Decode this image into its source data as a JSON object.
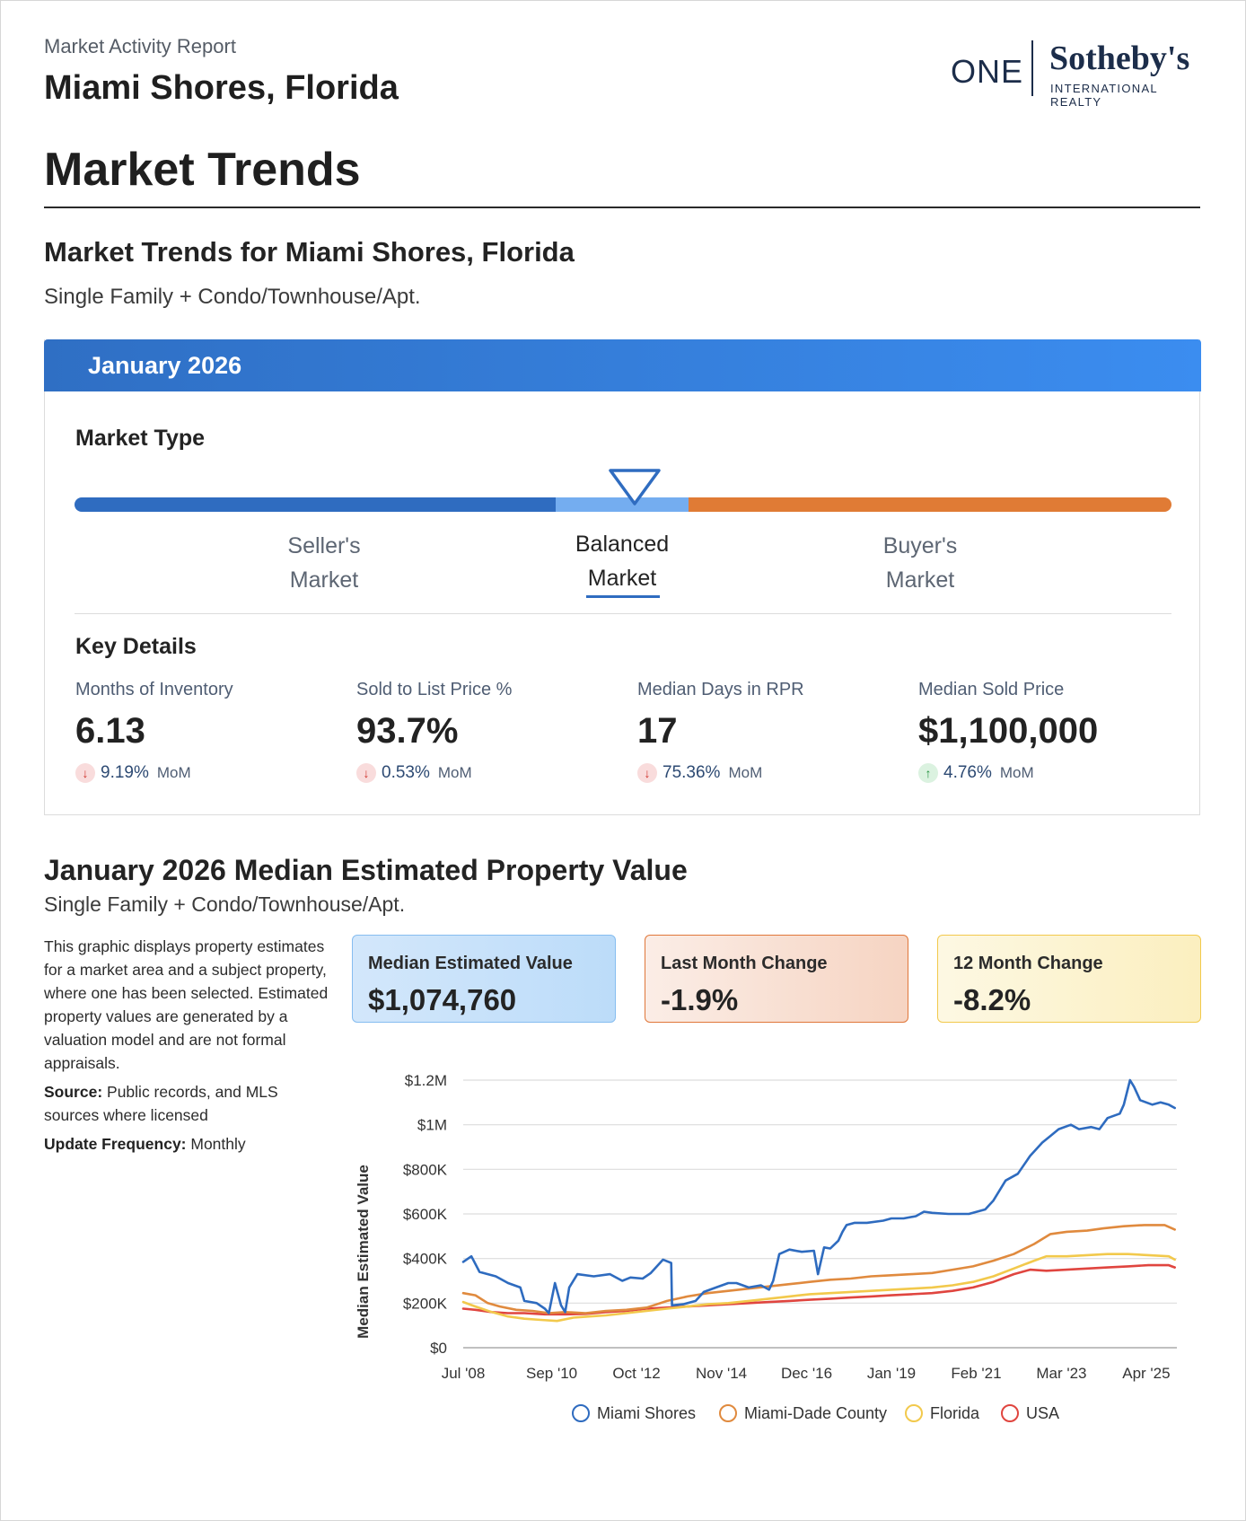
{
  "header": {
    "report_label": "Market Activity Report",
    "location": "Miami Shores, Florida",
    "logo": {
      "one": "ONE",
      "brand": "Sotheby's",
      "tagline": "INTERNATIONAL REALTY"
    }
  },
  "page_title": "Market Trends",
  "section": {
    "title": "Market Trends for Miami Shores, Florida",
    "subtitle": "Single Family + Condo/Townhouse/Apt."
  },
  "month_card": {
    "month_label": "January 2026",
    "market_type": {
      "heading": "Market Type",
      "sellers": [
        "Seller's",
        "Market"
      ],
      "balanced": [
        "Balanced",
        "Market"
      ],
      "buyers": [
        "Buyer's",
        "Market"
      ],
      "active": "balanced",
      "colors": {
        "seller": "#2f6cc0",
        "balanced": "#74adf0",
        "buyer": "#e07b35"
      }
    },
    "key_details": {
      "heading": "Key Details",
      "stats": [
        {
          "label": "Months of Inventory",
          "value": "6.13",
          "direction": "down",
          "icon": "arrow-down-icon",
          "arrow": "↓",
          "change": "9.19%",
          "period": "MoM"
        },
        {
          "label": "Sold to List Price %",
          "value": "93.7%",
          "direction": "down",
          "icon": "arrow-down-icon",
          "arrow": "↓",
          "change": "0.53%",
          "period": "MoM"
        },
        {
          "label": "Median Days in RPR",
          "value": "17",
          "direction": "down",
          "icon": "arrow-down-icon",
          "arrow": "↓",
          "change": "75.36%",
          "period": "MoM"
        },
        {
          "label": "Median Sold Price",
          "value": "$1,100,000",
          "direction": "up",
          "icon": "arrow-up-icon",
          "arrow": "↑",
          "change": "4.76%",
          "period": "MoM"
        }
      ]
    }
  },
  "value_section": {
    "title": "January 2026 Median Estimated Property Value",
    "subtitle": "Single Family + Condo/Townhouse/Apt.",
    "description": "This graphic displays property estimates for a market area and a subject property, where one has been selected. Estimated property values are generated by a valuation model and are not formal appraisals.",
    "source_label": "Source:",
    "source_text": "Public records, and MLS sources where licensed",
    "frequency_label": "Update Frequency:",
    "frequency_text": "Monthly",
    "cards": [
      {
        "title": "Median Estimated Value",
        "value": "$1,074,760"
      },
      {
        "title": "Last Month Change",
        "value": "-1.9%"
      },
      {
        "title": "12 Month Change",
        "value": "-8.2%"
      }
    ]
  },
  "chart_data": {
    "type": "line",
    "ylabel": "Median Estimated Value",
    "xlabel": "",
    "ylim": [
      0,
      1200000
    ],
    "yticks": [
      {
        "value": 0,
        "label": "$0"
      },
      {
        "value": 200000,
        "label": "$200K"
      },
      {
        "value": 400000,
        "label": "$400K"
      },
      {
        "value": 600000,
        "label": "$600K"
      },
      {
        "value": 800000,
        "label": "$800K"
      },
      {
        "value": 1000000,
        "label": "$1M"
      },
      {
        "value": 1200000,
        "label": "$1.2M"
      }
    ],
    "xlim": [
      2008.5,
      2026.0
    ],
    "xticks": [
      {
        "value": 2008.5,
        "label": "Jul '08"
      },
      {
        "value": 2010.67,
        "label": "Sep '10"
      },
      {
        "value": 2012.75,
        "label": "Oct '12"
      },
      {
        "value": 2014.83,
        "label": "Nov '14"
      },
      {
        "value": 2016.92,
        "label": "Dec '16"
      },
      {
        "value": 2019.0,
        "label": "Jan '19"
      },
      {
        "value": 2021.08,
        "label": "Feb '21"
      },
      {
        "value": 2023.17,
        "label": "Mar '23"
      },
      {
        "value": 2025.25,
        "label": "Apr '25"
      }
    ],
    "grid": "horizontal",
    "legend_position": "bottom",
    "series": [
      {
        "name": "Miami Shores",
        "color": "#2e6bbf",
        "points": [
          [
            2008.5,
            385000
          ],
          [
            2008.7,
            410000
          ],
          [
            2008.9,
            340000
          ],
          [
            2009.3,
            320000
          ],
          [
            2009.6,
            290000
          ],
          [
            2009.9,
            270000
          ],
          [
            2010.0,
            210000
          ],
          [
            2010.3,
            200000
          ],
          [
            2010.5,
            175000
          ],
          [
            2010.6,
            155000
          ],
          [
            2010.75,
            290000
          ],
          [
            2010.9,
            190000
          ],
          [
            2011.0,
            160000
          ],
          [
            2011.1,
            270000
          ],
          [
            2011.3,
            330000
          ],
          [
            2011.7,
            320000
          ],
          [
            2012.1,
            330000
          ],
          [
            2012.4,
            300000
          ],
          [
            2012.6,
            315000
          ],
          [
            2012.9,
            310000
          ],
          [
            2013.1,
            335000
          ],
          [
            2013.4,
            395000
          ],
          [
            2013.6,
            380000
          ],
          [
            2013.62,
            190000
          ],
          [
            2013.9,
            195000
          ],
          [
            2014.2,
            210000
          ],
          [
            2014.4,
            250000
          ],
          [
            2014.7,
            270000
          ],
          [
            2015.0,
            290000
          ],
          [
            2015.2,
            290000
          ],
          [
            2015.5,
            270000
          ],
          [
            2015.8,
            280000
          ],
          [
            2016.0,
            260000
          ],
          [
            2016.1,
            300000
          ],
          [
            2016.25,
            420000
          ],
          [
            2016.5,
            440000
          ],
          [
            2016.8,
            430000
          ],
          [
            2017.1,
            435000
          ],
          [
            2017.2,
            330000
          ],
          [
            2017.35,
            450000
          ],
          [
            2017.5,
            445000
          ],
          [
            2017.7,
            480000
          ],
          [
            2017.8,
            520000
          ],
          [
            2017.9,
            550000
          ],
          [
            2018.1,
            560000
          ],
          [
            2018.4,
            560000
          ],
          [
            2018.8,
            570000
          ],
          [
            2019.0,
            580000
          ],
          [
            2019.3,
            580000
          ],
          [
            2019.6,
            590000
          ],
          [
            2019.8,
            610000
          ],
          [
            2020.0,
            605000
          ],
          [
            2020.4,
            600000
          ],
          [
            2020.6,
            600000
          ],
          [
            2020.9,
            600000
          ],
          [
            2021.1,
            610000
          ],
          [
            2021.3,
            620000
          ],
          [
            2021.5,
            660000
          ],
          [
            2021.8,
            750000
          ],
          [
            2022.1,
            780000
          ],
          [
            2022.4,
            860000
          ],
          [
            2022.7,
            920000
          ],
          [
            2022.9,
            950000
          ],
          [
            2023.1,
            980000
          ],
          [
            2023.4,
            1000000
          ],
          [
            2023.6,
            980000
          ],
          [
            2023.9,
            990000
          ],
          [
            2024.1,
            980000
          ],
          [
            2024.3,
            1030000
          ],
          [
            2024.6,
            1050000
          ],
          [
            2024.7,
            1090000
          ],
          [
            2024.85,
            1200000
          ],
          [
            2024.95,
            1170000
          ],
          [
            2025.1,
            1110000
          ],
          [
            2025.4,
            1090000
          ],
          [
            2025.6,
            1100000
          ],
          [
            2025.8,
            1090000
          ],
          [
            2025.95,
            1075000
          ]
        ]
      },
      {
        "name": "Miami-Dade County",
        "color": "#e08a3e",
        "points": [
          [
            2008.5,
            245000
          ],
          [
            2008.8,
            235000
          ],
          [
            2009.1,
            200000
          ],
          [
            2009.4,
            185000
          ],
          [
            2009.8,
            170000
          ],
          [
            2010.2,
            165000
          ],
          [
            2010.6,
            155000
          ],
          [
            2011.0,
            160000
          ],
          [
            2011.5,
            155000
          ],
          [
            2012.0,
            165000
          ],
          [
            2012.5,
            170000
          ],
          [
            2013.0,
            180000
          ],
          [
            2013.5,
            210000
          ],
          [
            2014.0,
            230000
          ],
          [
            2014.5,
            245000
          ],
          [
            2015.0,
            255000
          ],
          [
            2015.5,
            265000
          ],
          [
            2016.0,
            275000
          ],
          [
            2016.5,
            285000
          ],
          [
            2017.0,
            295000
          ],
          [
            2017.5,
            305000
          ],
          [
            2018.0,
            310000
          ],
          [
            2018.5,
            320000
          ],
          [
            2019.0,
            325000
          ],
          [
            2019.5,
            330000
          ],
          [
            2020.0,
            335000
          ],
          [
            2020.5,
            350000
          ],
          [
            2021.0,
            365000
          ],
          [
            2021.5,
            390000
          ],
          [
            2022.0,
            420000
          ],
          [
            2022.5,
            465000
          ],
          [
            2022.9,
            510000
          ],
          [
            2023.3,
            520000
          ],
          [
            2023.8,
            525000
          ],
          [
            2024.2,
            535000
          ],
          [
            2024.7,
            545000
          ],
          [
            2025.2,
            550000
          ],
          [
            2025.7,
            550000
          ],
          [
            2025.95,
            530000
          ]
        ]
      },
      {
        "name": "Florida",
        "color": "#f2c94c",
        "points": [
          [
            2008.5,
            205000
          ],
          [
            2008.8,
            185000
          ],
          [
            2009.2,
            160000
          ],
          [
            2009.6,
            140000
          ],
          [
            2010.0,
            130000
          ],
          [
            2010.4,
            125000
          ],
          [
            2010.8,
            120000
          ],
          [
            2011.2,
            135000
          ],
          [
            2011.6,
            140000
          ],
          [
            2012.0,
            145000
          ],
          [
            2012.5,
            155000
          ],
          [
            2013.0,
            165000
          ],
          [
            2013.5,
            175000
          ],
          [
            2014.0,
            185000
          ],
          [
            2014.5,
            195000
          ],
          [
            2015.0,
            200000
          ],
          [
            2015.5,
            210000
          ],
          [
            2016.0,
            220000
          ],
          [
            2016.5,
            230000
          ],
          [
            2017.0,
            240000
          ],
          [
            2017.5,
            245000
          ],
          [
            2018.0,
            250000
          ],
          [
            2018.5,
            255000
          ],
          [
            2019.0,
            260000
          ],
          [
            2019.5,
            265000
          ],
          [
            2020.0,
            270000
          ],
          [
            2020.5,
            280000
          ],
          [
            2021.0,
            295000
          ],
          [
            2021.5,
            320000
          ],
          [
            2022.0,
            355000
          ],
          [
            2022.5,
            390000
          ],
          [
            2022.8,
            410000
          ],
          [
            2023.3,
            410000
          ],
          [
            2023.8,
            415000
          ],
          [
            2024.3,
            420000
          ],
          [
            2024.8,
            420000
          ],
          [
            2025.3,
            415000
          ],
          [
            2025.8,
            410000
          ],
          [
            2025.95,
            395000
          ]
        ]
      },
      {
        "name": "USA",
        "color": "#e0453f",
        "points": [
          [
            2008.5,
            175000
          ],
          [
            2008.8,
            170000
          ],
          [
            2009.2,
            160000
          ],
          [
            2009.6,
            155000
          ],
          [
            2010.0,
            155000
          ],
          [
            2010.5,
            150000
          ],
          [
            2011.0,
            150000
          ],
          [
            2011.5,
            152000
          ],
          [
            2012.0,
            160000
          ],
          [
            2012.5,
            165000
          ],
          [
            2013.0,
            175000
          ],
          [
            2013.5,
            180000
          ],
          [
            2014.0,
            185000
          ],
          [
            2014.5,
            190000
          ],
          [
            2015.0,
            195000
          ],
          [
            2015.5,
            200000
          ],
          [
            2016.0,
            205000
          ],
          [
            2016.5,
            210000
          ],
          [
            2017.0,
            215000
          ],
          [
            2017.5,
            220000
          ],
          [
            2018.0,
            225000
          ],
          [
            2018.5,
            230000
          ],
          [
            2019.0,
            235000
          ],
          [
            2019.5,
            240000
          ],
          [
            2020.0,
            245000
          ],
          [
            2020.5,
            255000
          ],
          [
            2021.0,
            270000
          ],
          [
            2021.5,
            295000
          ],
          [
            2022.0,
            330000
          ],
          [
            2022.4,
            350000
          ],
          [
            2022.8,
            345000
          ],
          [
            2023.3,
            350000
          ],
          [
            2023.8,
            355000
          ],
          [
            2024.3,
            360000
          ],
          [
            2024.8,
            365000
          ],
          [
            2025.3,
            370000
          ],
          [
            2025.8,
            370000
          ],
          [
            2025.95,
            360000
          ]
        ]
      }
    ]
  }
}
